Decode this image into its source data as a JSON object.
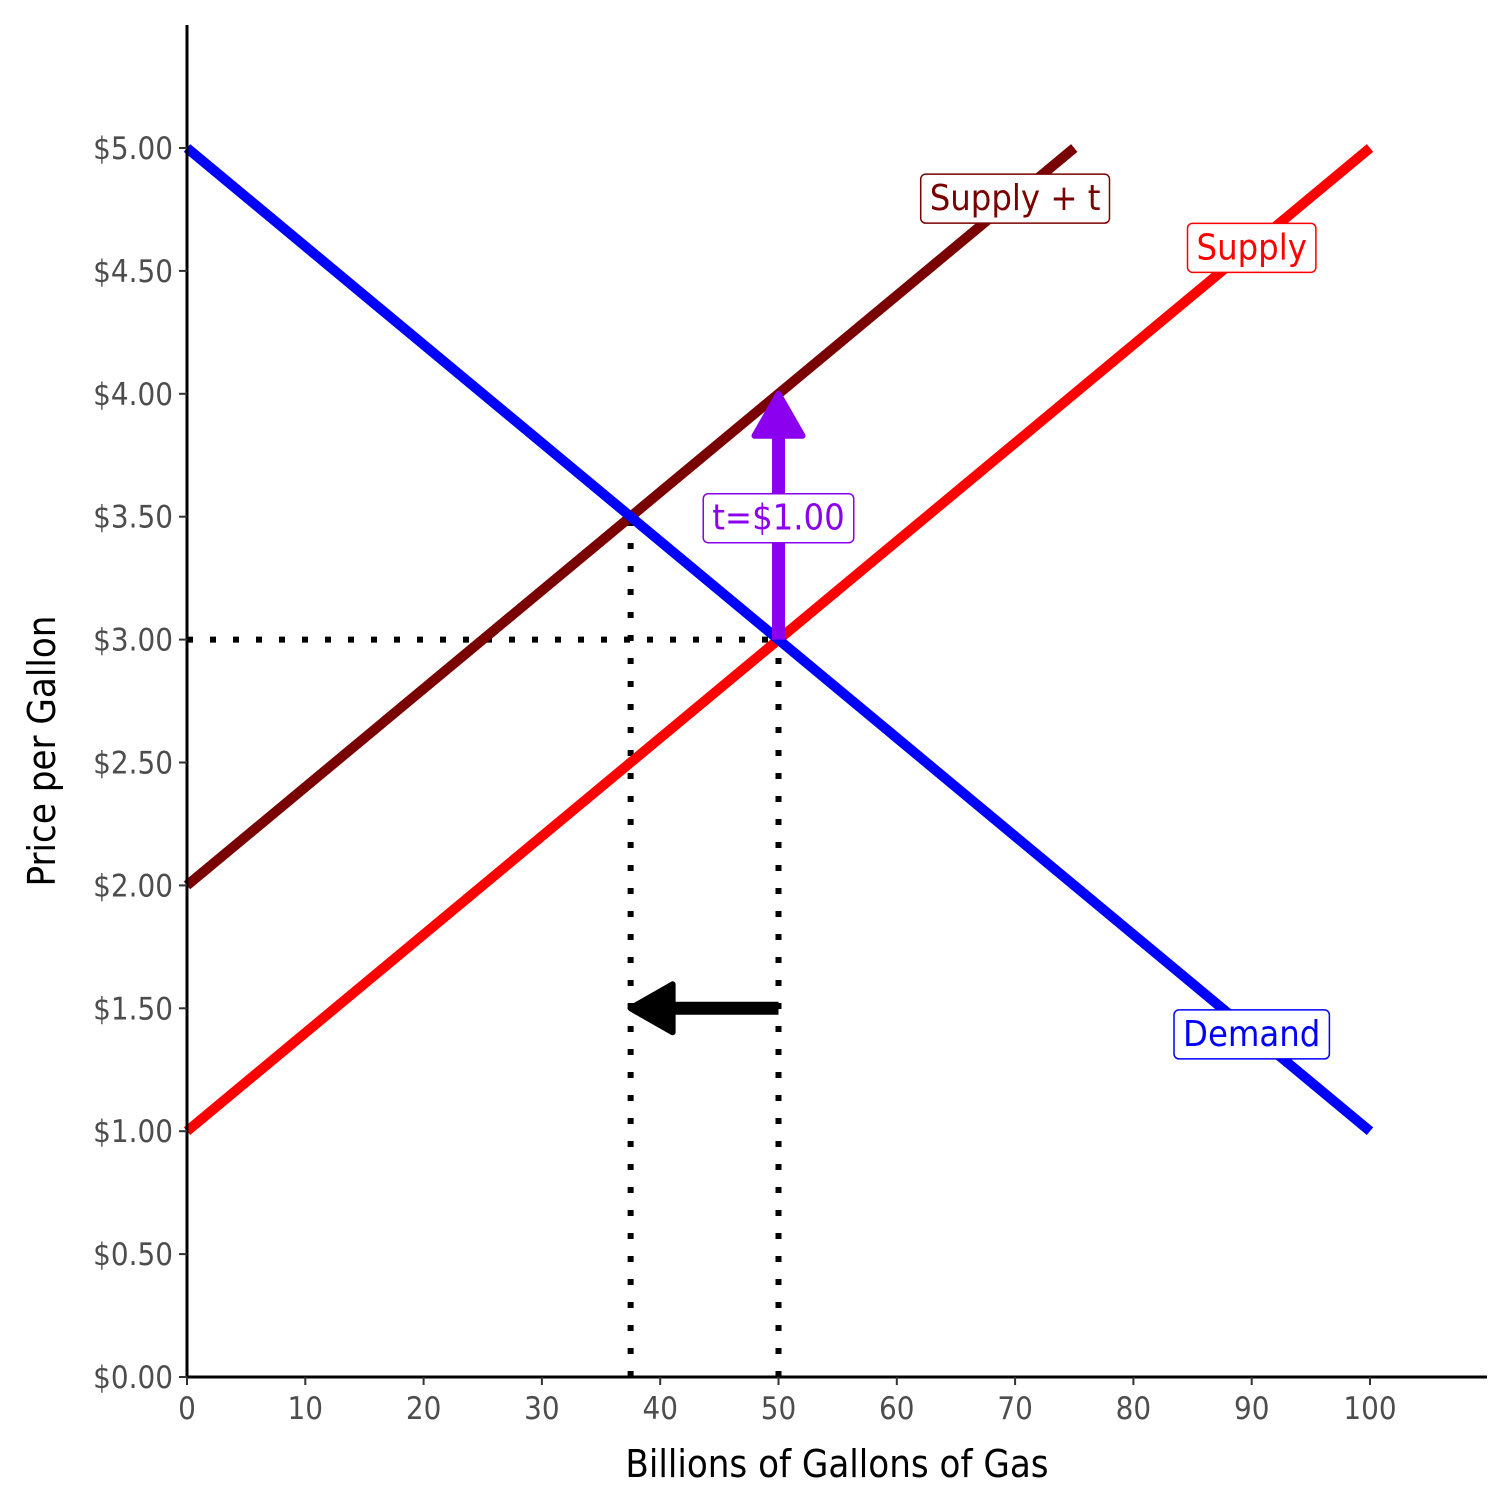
{
  "chart_data": {
    "type": "line",
    "xlabel": "Billions of Gallons of Gas",
    "ylabel": "Price per Gallon",
    "xlim": [
      0,
      110
    ],
    "ylim": [
      0,
      5.5
    ],
    "x_ticks": [
      {
        "value": 0,
        "label": "0"
      },
      {
        "value": 10,
        "label": "10"
      },
      {
        "value": 20,
        "label": "20"
      },
      {
        "value": 30,
        "label": "30"
      },
      {
        "value": 40,
        "label": "40"
      },
      {
        "value": 50,
        "label": "50"
      },
      {
        "value": 60,
        "label": "60"
      },
      {
        "value": 70,
        "label": "70"
      },
      {
        "value": 80,
        "label": "80"
      },
      {
        "value": 90,
        "label": "90"
      },
      {
        "value": 100,
        "label": "100"
      }
    ],
    "y_ticks": [
      {
        "value": 0,
        "label": "$0.00"
      },
      {
        "value": 0.5,
        "label": "$0.50"
      },
      {
        "value": 1,
        "label": "$1.00"
      },
      {
        "value": 1.5,
        "label": "$1.50"
      },
      {
        "value": 2,
        "label": "$2.00"
      },
      {
        "value": 2.5,
        "label": "$2.50"
      },
      {
        "value": 3,
        "label": "$3.00"
      },
      {
        "value": 3.5,
        "label": "$3.50"
      },
      {
        "value": 4,
        "label": "$4.00"
      },
      {
        "value": 4.5,
        "label": "$4.50"
      },
      {
        "value": 5,
        "label": "$5.00"
      }
    ],
    "grid": false,
    "series": [
      {
        "name": "Supply + t",
        "color": "#7a0000",
        "x": [
          0,
          75
        ],
        "y": [
          2,
          5
        ]
      },
      {
        "name": "Supply",
        "color": "#ff0000",
        "x": [
          0,
          100
        ],
        "y": [
          1,
          5
        ]
      },
      {
        "name": "Demand",
        "color": "#0000ff",
        "x": [
          0,
          100
        ],
        "y": [
          5,
          1
        ]
      }
    ],
    "labels": [
      {
        "text": "Supply + t",
        "x": 70,
        "y": 4.8,
        "color": "#7a0000"
      },
      {
        "text": "Supply",
        "x": 90,
        "y": 4.6,
        "color": "#ff0000"
      },
      {
        "text": "Demand",
        "x": 90,
        "y": 1.4,
        "color": "#0000ff"
      },
      {
        "text": "t=$1.00",
        "x": 50,
        "y": 3.5,
        "color": "#8a00ef"
      }
    ],
    "reference_lines": [
      {
        "from": [
          0,
          3
        ],
        "to": [
          50,
          3
        ]
      },
      {
        "from": [
          50,
          0
        ],
        "to": [
          50,
          3
        ]
      },
      {
        "from": [
          37.5,
          0
        ],
        "to": [
          37.5,
          3.5
        ]
      }
    ],
    "arrows": [
      {
        "from": [
          50,
          3
        ],
        "to": [
          50,
          4
        ],
        "color": "#8a00ef"
      },
      {
        "from": [
          50,
          1.5
        ],
        "to": [
          37.5,
          1.5
        ],
        "color": "#000000"
      }
    ]
  }
}
